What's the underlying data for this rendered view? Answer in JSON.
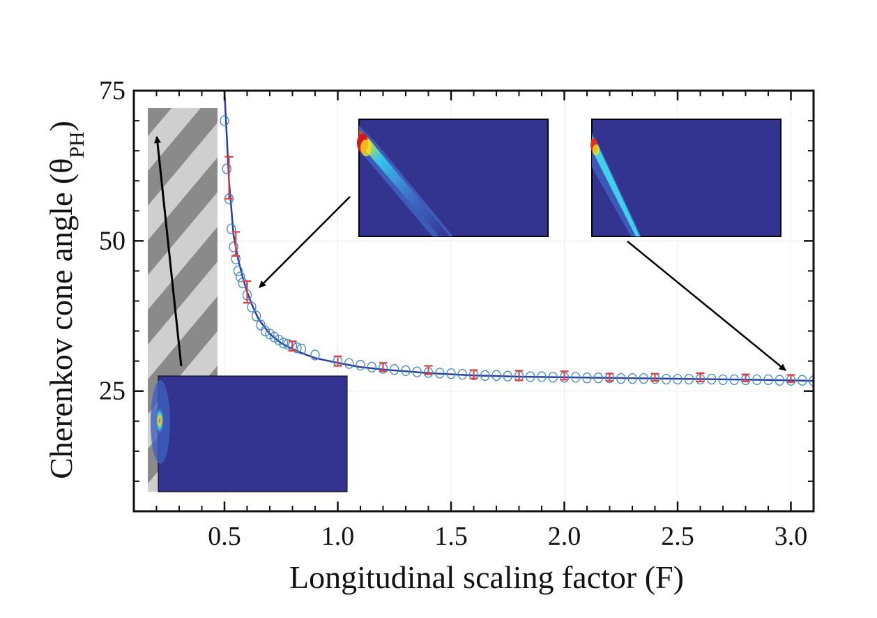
{
  "chart_data": {
    "type": "scatter",
    "xlabel": "Longitudinal scaling factor (F)",
    "ylabel_main": "Cherenkov cone angle (θ",
    "ylabel_sub": "PH",
    "ylabel_close": ")",
    "xlim": [
      0.1,
      3.1
    ],
    "ylim": [
      5,
      75
    ],
    "x_ticks": [
      0.5,
      1.0,
      1.5,
      2.0,
      2.5,
      3.0
    ],
    "x_tick_labels": [
      "0.5",
      "1.0",
      "1.5",
      "2.0",
      "2.5",
      "3.0"
    ],
    "y_ticks": [
      25,
      50,
      75
    ],
    "y_tick_labels": [
      "25",
      "50",
      "75"
    ],
    "grid": true,
    "series": [
      {
        "style": "open-circles",
        "color": "#3a86c8",
        "x": [
          0.5,
          0.51,
          0.52,
          0.53,
          0.54,
          0.55,
          0.56,
          0.57,
          0.58,
          0.6,
          0.62,
          0.64,
          0.66,
          0.68,
          0.7,
          0.72,
          0.74,
          0.76,
          0.78,
          0.8,
          0.82,
          0.84,
          0.9,
          1.0,
          1.05,
          1.1,
          1.15,
          1.2,
          1.25,
          1.3,
          1.35,
          1.4,
          1.45,
          1.5,
          1.55,
          1.6,
          1.65,
          1.7,
          1.75,
          1.8,
          1.85,
          1.9,
          1.95,
          2.0,
          2.05,
          2.1,
          2.15,
          2.2,
          2.25,
          2.3,
          2.35,
          2.4,
          2.45,
          2.5,
          2.55,
          2.6,
          2.65,
          2.7,
          2.75,
          2.8,
          2.85,
          2.9,
          2.95,
          3.0,
          3.05,
          3.1
        ],
        "y": [
          70,
          62,
          57,
          52,
          49,
          47,
          45,
          44,
          43,
          41,
          39,
          37.5,
          36,
          35,
          34.5,
          34,
          33.5,
          33,
          32.8,
          32.5,
          32.2,
          32,
          31,
          30,
          29.6,
          29.3,
          29,
          28.8,
          28.6,
          28.4,
          28.2,
          28.1,
          28,
          27.9,
          27.8,
          27.7,
          27.6,
          27.6,
          27.5,
          27.5,
          27.4,
          27.4,
          27.3,
          27.3,
          27.3,
          27.2,
          27.2,
          27.2,
          27.1,
          27.1,
          27.1,
          27.1,
          27,
          27,
          27,
          27,
          27,
          26.9,
          26.9,
          26.9,
          26.9,
          26.9,
          26.8,
          26.8,
          26.8,
          26.7
        ]
      },
      {
        "style": "line",
        "color": "#2b3d9e",
        "x": [
          0.5,
          0.52,
          0.54,
          0.56,
          0.58,
          0.6,
          0.62,
          0.65,
          0.7,
          0.75,
          0.8,
          0.85,
          0.9,
          1.0,
          1.1,
          1.2,
          1.4,
          1.6,
          1.8,
          2.0,
          2.2,
          2.4,
          2.6,
          2.8,
          3.0,
          3.1
        ],
        "y": [
          75,
          60,
          51,
          47,
          44,
          41.5,
          39.5,
          37,
          34.5,
          33,
          32,
          31.2,
          30.5,
          29.7,
          29,
          28.6,
          28,
          27.6,
          27.4,
          27.3,
          27.2,
          27.1,
          27,
          26.9,
          26.8,
          26.7
        ]
      },
      {
        "style": "error-bars",
        "color": "#e04040",
        "x": [
          0.52,
          0.55,
          0.6,
          0.8,
          1.0,
          1.2,
          1.4,
          1.6,
          1.8,
          2.0,
          2.2,
          2.4,
          2.6,
          2.8,
          3.0
        ],
        "y": [
          60.5,
          49.5,
          41.5,
          32.5,
          30,
          29,
          28.5,
          27.8,
          27.6,
          27.6,
          27.3,
          27.3,
          27.3,
          27.2,
          27.1
        ],
        "err": [
          3.5,
          2,
          1.8,
          0.8,
          0.8,
          0.7,
          0.7,
          0.7,
          0.8,
          0.7,
          0.6,
          0.6,
          0.7,
          0.6,
          0.6
        ]
      }
    ]
  },
  "insets": {
    "colors": {
      "background": "#333390",
      "stripe_dark": "#8a8a8a",
      "stripe_light": "#cfcfcf"
    }
  }
}
